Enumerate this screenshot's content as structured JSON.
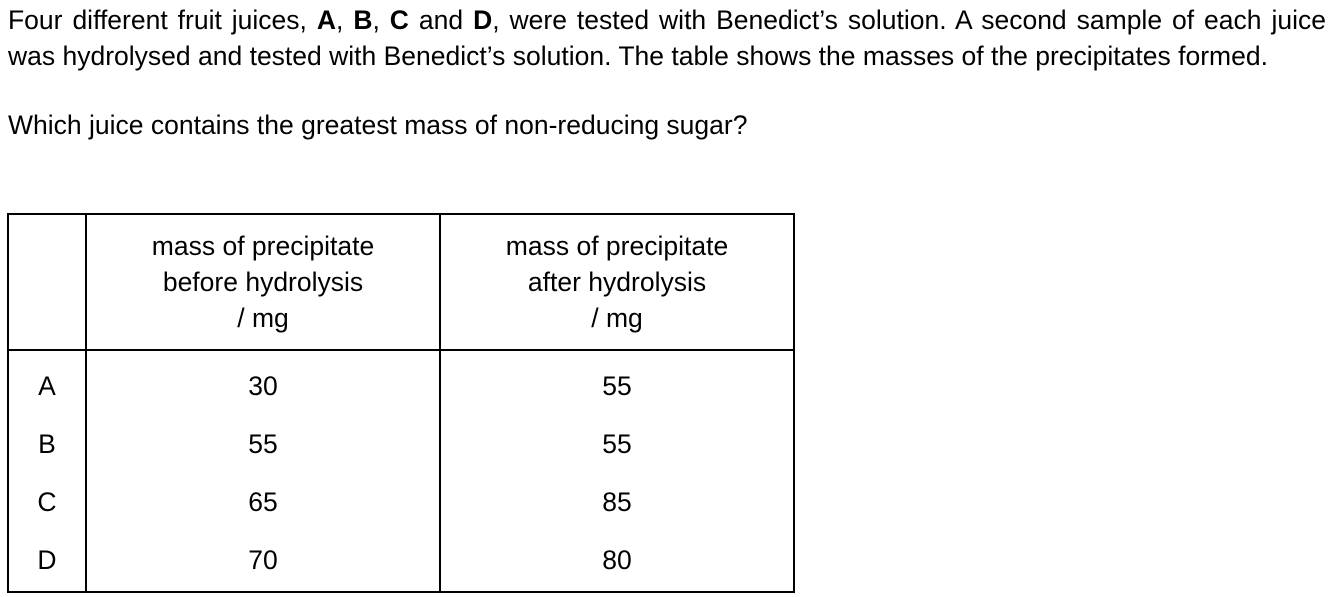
{
  "question": {
    "intro": {
      "part1": "Four different fruit juices, ",
      "letter_a": "A",
      "sep1": ", ",
      "letter_b": "B",
      "sep2": ", ",
      "letter_c": "C",
      "sep3": " and ",
      "letter_d": "D",
      "part2": ", were tested with Benedict’s solution. A second sample of each juice was hydrolysed and tested with Benedict’s solution. The table shows the masses of the precipitates formed."
    },
    "prompt": "Which juice contains the greatest mass of non-reducing sugar?"
  },
  "table": {
    "headers": {
      "label": "",
      "before": {
        "line1": "mass of precipitate",
        "line2": "before hydrolysis",
        "line3": "/ mg"
      },
      "after": {
        "line1": "mass of precipitate",
        "line2": "after hydrolysis",
        "line3": "/ mg"
      }
    },
    "rows": [
      {
        "label": "A",
        "before": "30",
        "after": "55"
      },
      {
        "label": "B",
        "before": "55",
        "after": "55"
      },
      {
        "label": "C",
        "before": "65",
        "after": "85"
      },
      {
        "label": "D",
        "before": "70",
        "after": "80"
      }
    ]
  }
}
